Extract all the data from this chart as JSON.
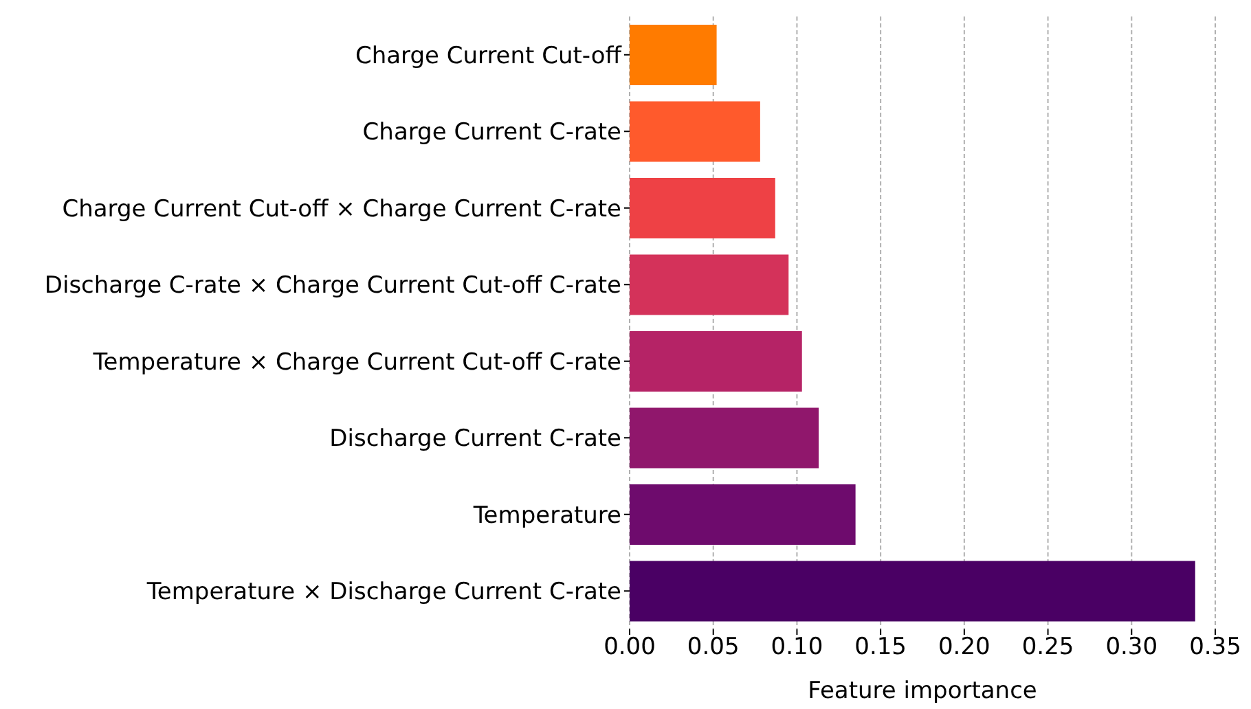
{
  "chart_data": {
    "type": "bar",
    "orientation": "horizontal",
    "xlabel": "Feature importance",
    "categories": [
      "Charge Current Cut-off",
      "Charge Current C-rate",
      "Charge Current Cut-off × Charge Current C-rate",
      "Discharge C-rate × Charge Current Cut-off C-rate",
      "Temperature × Charge Current Cut-off C-rate",
      "Discharge Current C-rate",
      "Temperature",
      "Temperature × Discharge Current C-rate"
    ],
    "values": [
      0.052,
      0.078,
      0.087,
      0.095,
      0.103,
      0.113,
      0.135,
      0.338
    ],
    "colors": [
      "#ff7b00",
      "#ff5a2c",
      "#ee4145",
      "#d4325a",
      "#b52366",
      "#90176c",
      "#6e0b6d",
      "#4a0064"
    ],
    "xlim": [
      0,
      0.35
    ],
    "xticks": [
      {
        "value": 0,
        "label": "0.00"
      },
      {
        "value": 0.05,
        "label": "0.05"
      },
      {
        "value": 0.1,
        "label": "0.10"
      },
      {
        "value": 0.15,
        "label": "0.15"
      },
      {
        "value": 0.2,
        "label": "0.20"
      },
      {
        "value": 0.25,
        "label": "0.25"
      },
      {
        "value": 0.3,
        "label": "0.30"
      },
      {
        "value": 0.35,
        "label": "0.35"
      }
    ],
    "grid": "x",
    "legend": false
  }
}
